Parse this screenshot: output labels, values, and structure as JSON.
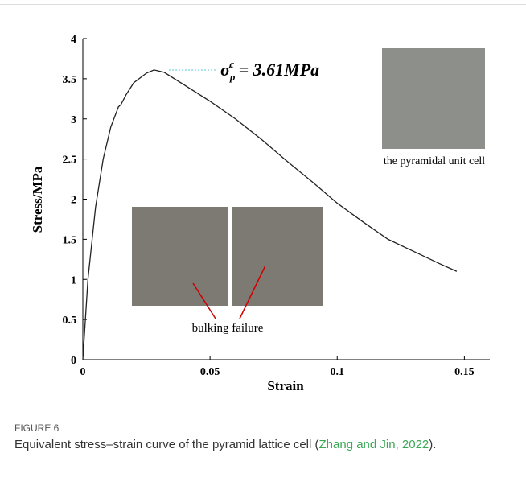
{
  "chart_data": {
    "type": "line",
    "xlabel": "Strain",
    "ylabel": "Stress/MPa",
    "x": [
      0,
      0.002,
      0.005,
      0.008,
      0.011,
      0.014,
      0.015,
      0.017,
      0.02,
      0.025,
      0.028,
      0.032,
      0.04,
      0.05,
      0.06,
      0.07,
      0.08,
      0.09,
      0.1,
      0.11,
      0.12,
      0.13,
      0.14,
      0.147
    ],
    "values": [
      0,
      1.0,
      1.9,
      2.5,
      2.9,
      3.15,
      3.18,
      3.3,
      3.45,
      3.57,
      3.61,
      3.58,
      3.42,
      3.22,
      3.0,
      2.75,
      2.48,
      2.22,
      1.95,
      1.72,
      1.5,
      1.35,
      1.2,
      1.1
    ],
    "color": "#222222",
    "xlim": [
      0,
      0.16
    ],
    "xticks": [
      0,
      0.05,
      0.1,
      0.15
    ],
    "ylim": [
      0,
      4
    ],
    "yticks": [
      0,
      0.5,
      1,
      1.5,
      2,
      2.5,
      3,
      3.5,
      4
    ],
    "peak_annotation": {
      "symbol": "σ",
      "sub": "p",
      "sup": "c",
      "text": " = 3.61MPa"
    },
    "photo_labels": [
      "the pyramidal unit cell",
      "bulking failure"
    ]
  },
  "figure_label": "FIGURE 6",
  "caption": {
    "text": "Equivalent stress–strain curve of the pyramid lattice cell (",
    "link": "Zhang and Jin, 2022",
    "end": ")."
  }
}
